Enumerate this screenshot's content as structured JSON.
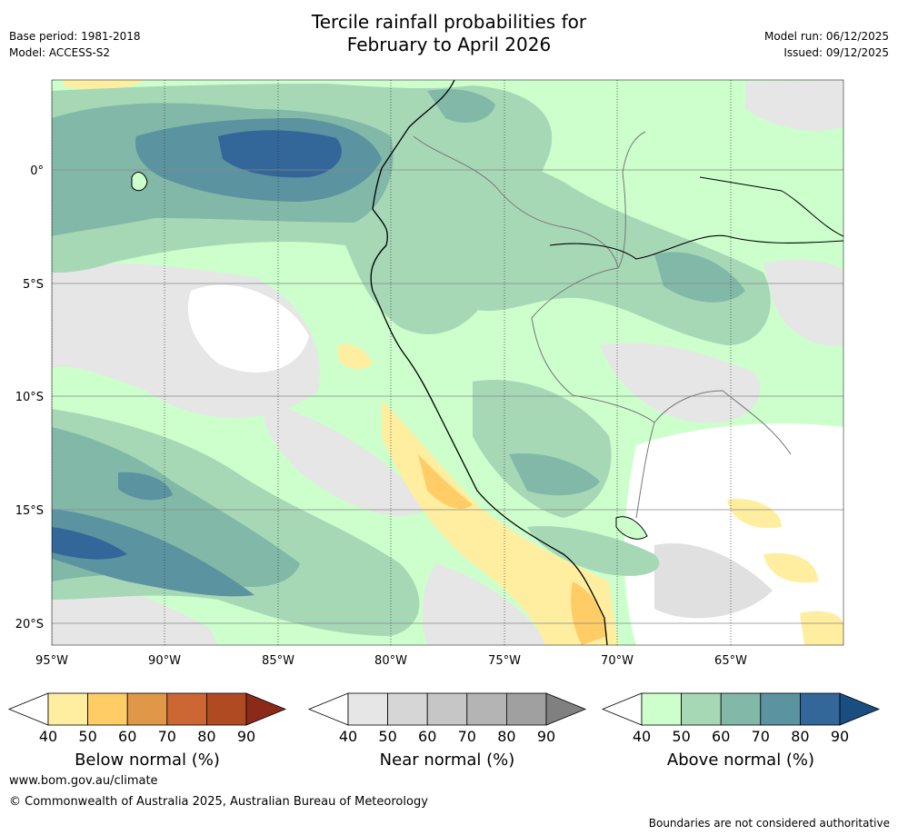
{
  "title": {
    "line1": "Tercile rainfall probabilities for",
    "line2": "February to April 2026"
  },
  "meta": {
    "base_period": "Base period: 1981-2018",
    "model": "Model: ACCESS-S2",
    "model_run": "Model run: 06/12/2025",
    "issued": "Issued: 09/12/2025"
  },
  "axes": {
    "lat_labels": [
      "0°",
      "5°S",
      "10°S",
      "15°S",
      "20°S"
    ],
    "lon_labels": [
      "95°W",
      "90°W",
      "85°W",
      "80°W",
      "75°W",
      "70°W",
      "65°W"
    ]
  },
  "colorbars": [
    {
      "name": "below",
      "label": "Below normal (%)",
      "ticks": [
        "40",
        "50",
        "60",
        "70",
        "80",
        "90"
      ],
      "colors": [
        "#ffeea0",
        "#ffcc66",
        "#e09848",
        "#cc6633",
        "#b04a22",
        "#8c2a1a"
      ]
    },
    {
      "name": "near",
      "label": "Near normal (%)",
      "ticks": [
        "40",
        "50",
        "60",
        "70",
        "80",
        "90"
      ],
      "colors": [
        "#e6e6e6",
        "#d6d6d6",
        "#c6c6c6",
        "#b4b4b4",
        "#a0a0a0",
        "#808080"
      ]
    },
    {
      "name": "above",
      "label": "Above normal (%)",
      "ticks": [
        "40",
        "50",
        "60",
        "70",
        "80",
        "90"
      ],
      "colors": [
        "#ccffcc",
        "#a6d8b6",
        "#82b8a8",
        "#5b93a0",
        "#336699",
        "#1a4d80"
      ]
    }
  ],
  "footer": {
    "website": "www.bom.gov.au/climate",
    "copyright": "© Commonwealth of Australia 2025, Australian Bureau of Meteorology",
    "disclaimer": "Boundaries are not considered authoritative"
  }
}
